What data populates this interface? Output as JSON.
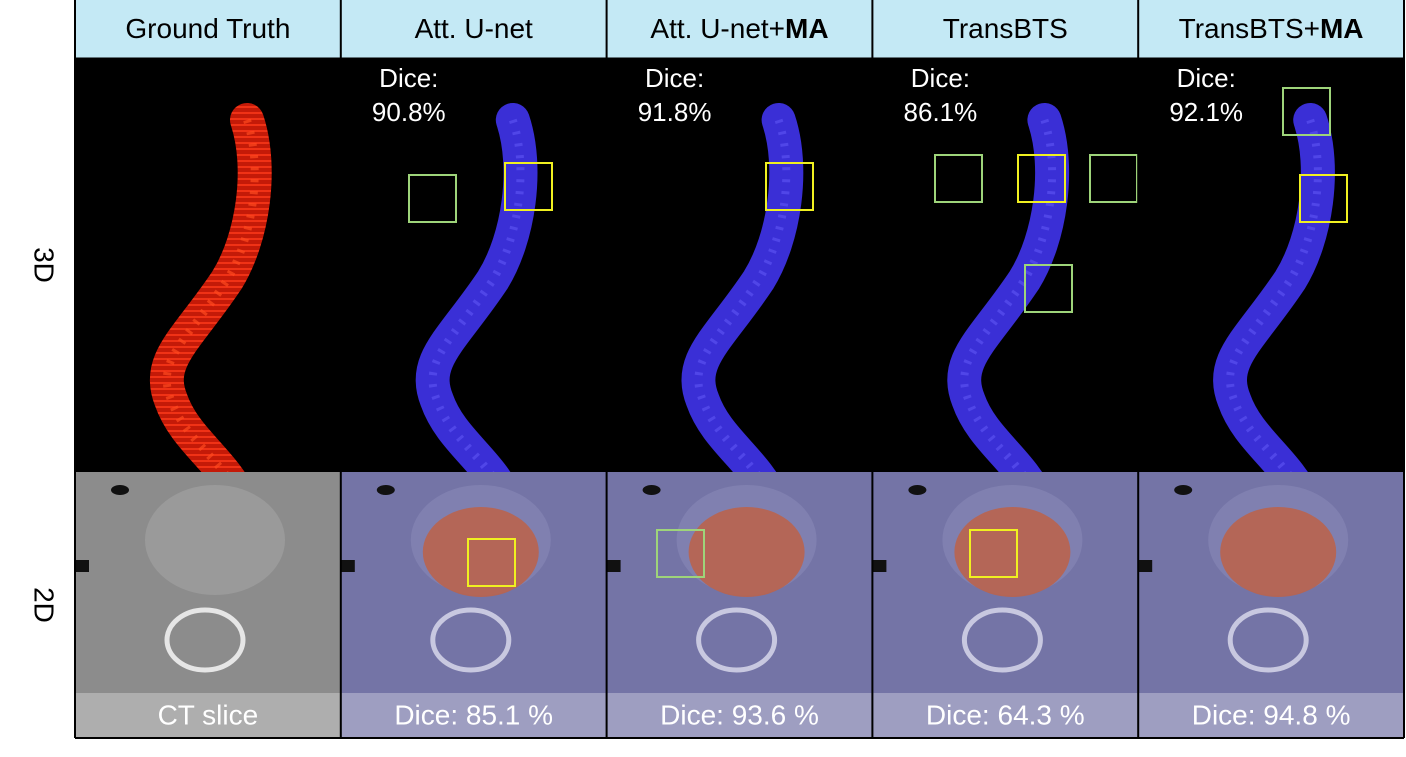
{
  "rows": [
    "3D",
    "2D"
  ],
  "columns": [
    {
      "header": {
        "text": "Ground Truth"
      },
      "caption": "CT slice"
    },
    {
      "header": {
        "text": "Att. U-net"
      },
      "dice_3d": {
        "label": "Dice:",
        "value": "90.8%"
      },
      "caption": "Dice: 85.1 %"
    },
    {
      "header": {
        "text": "Att. U-net+",
        "bold": "MA"
      },
      "dice_3d": {
        "label": "Dice:",
        "value": "91.8%"
      },
      "caption": "Dice: 93.6 %"
    },
    {
      "header": {
        "text": "TransBTS"
      },
      "dice_3d": {
        "label": "Dice:",
        "value": "86.1%"
      },
      "caption": "Dice: 64.3 %"
    },
    {
      "header": {
        "text": "TransBTS+",
        "bold": "MA"
      },
      "dice_3d": {
        "label": "Dice:",
        "value": "92.1%"
      },
      "caption": "Dice: 94.8 %"
    }
  ]
}
